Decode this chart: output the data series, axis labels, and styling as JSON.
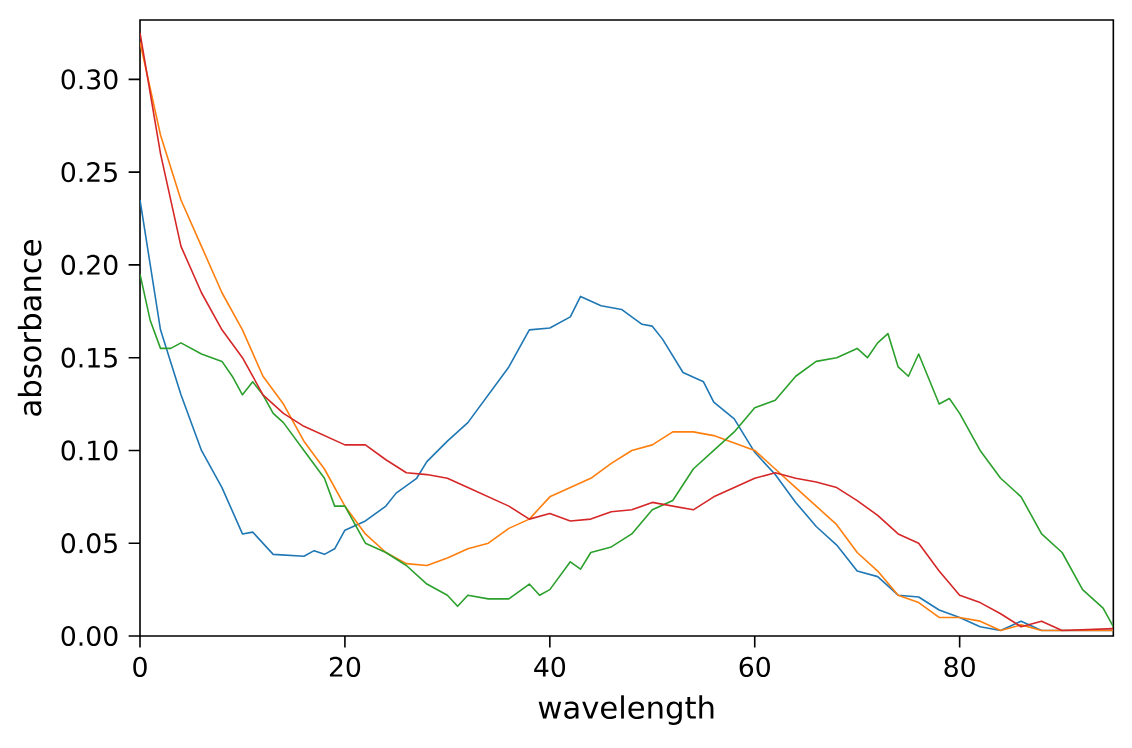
{
  "chart_data": {
    "type": "line",
    "xlabel": "wavelength",
    "ylabel": "absorbance",
    "xlim": [
      0,
      95
    ],
    "ylim": [
      0,
      0.332
    ],
    "xticks": [
      0,
      20,
      40,
      60,
      80
    ],
    "yticks": [
      {
        "value": 0,
        "label": "0.00"
      },
      {
        "value": 0.05,
        "label": "0.05"
      },
      {
        "value": 0.1,
        "label": "0.10"
      },
      {
        "value": 0.15,
        "label": "0.15"
      },
      {
        "value": 0.2,
        "label": "0.20"
      },
      {
        "value": 0.25,
        "label": "0.25"
      },
      {
        "value": 0.3,
        "label": "0.30"
      }
    ],
    "series": [
      {
        "color": "#1f77b4",
        "x": [
          0,
          2,
          4,
          6,
          8,
          10,
          11,
          13,
          16,
          17,
          18,
          19,
          20,
          22,
          24,
          25,
          27,
          28,
          30,
          32,
          34,
          36,
          37,
          38,
          40,
          42,
          43,
          45,
          47,
          49,
          50,
          51,
          53,
          55,
          56,
          58,
          60,
          62,
          64,
          66,
          68,
          70,
          72,
          74,
          76,
          78,
          80,
          82,
          84,
          86,
          88,
          90,
          95
        ],
        "values": [
          0.235,
          0.165,
          0.13,
          0.1,
          0.08,
          0.055,
          0.056,
          0.044,
          0.043,
          0.046,
          0.044,
          0.047,
          0.057,
          0.062,
          0.07,
          0.077,
          0.085,
          0.094,
          0.105,
          0.115,
          0.13,
          0.145,
          0.155,
          0.165,
          0.166,
          0.172,
          0.183,
          0.178,
          0.176,
          0.168,
          0.167,
          0.16,
          0.142,
          0.137,
          0.126,
          0.117,
          0.099,
          0.087,
          0.072,
          0.059,
          0.049,
          0.035,
          0.032,
          0.022,
          0.021,
          0.014,
          0.01,
          0.005,
          0.003,
          0.008,
          0.003,
          null,
          0.003
        ]
      },
      {
        "color": "#ff7f0e",
        "x": [
          0,
          2,
          4,
          6,
          8,
          10,
          12,
          14,
          16,
          18,
          20,
          22,
          24,
          26,
          28,
          30,
          32,
          34,
          36,
          38,
          40,
          42,
          44,
          46,
          48,
          50,
          52,
          54,
          56,
          58,
          60,
          62,
          64,
          66,
          68,
          70,
          72,
          74,
          76,
          78,
          80,
          82,
          84,
          86,
          88,
          90,
          95
        ],
        "values": [
          0.32,
          0.27,
          0.235,
          0.21,
          0.185,
          0.165,
          0.14,
          0.125,
          0.105,
          0.09,
          0.07,
          0.055,
          0.045,
          0.039,
          0.038,
          0.042,
          0.047,
          0.05,
          0.058,
          0.063,
          0.075,
          0.08,
          0.085,
          0.093,
          0.1,
          0.103,
          0.11,
          0.11,
          0.108,
          0.104,
          0.1,
          0.09,
          0.08,
          0.07,
          0.06,
          0.045,
          0.035,
          0.022,
          0.018,
          0.01,
          0.01,
          0.008,
          0.003,
          0.006,
          0.003,
          0.003,
          0.003
        ]
      },
      {
        "color": "#2ca02c",
        "x": [
          0,
          1,
          2,
          3,
          4,
          6,
          8,
          9,
          10,
          11,
          12,
          13,
          14,
          16,
          18,
          19,
          20,
          22,
          24,
          26,
          28,
          30,
          31,
          32,
          34,
          36,
          38,
          39,
          40,
          42,
          43,
          44,
          46,
          48,
          50,
          52,
          54,
          56,
          58,
          60,
          62,
          64,
          66,
          68,
          70,
          71,
          72,
          73,
          74,
          75,
          76,
          78,
          79,
          80,
          82,
          84,
          86,
          88,
          90,
          92,
          94,
          95
        ],
        "values": [
          0.195,
          0.17,
          0.155,
          0.155,
          0.158,
          0.152,
          0.148,
          0.14,
          0.13,
          0.137,
          0.13,
          0.12,
          0.115,
          0.1,
          0.085,
          0.07,
          0.07,
          0.05,
          0.045,
          0.038,
          0.028,
          0.022,
          0.016,
          0.022,
          0.02,
          0.02,
          0.028,
          0.022,
          0.025,
          0.04,
          0.036,
          0.045,
          0.048,
          0.055,
          0.068,
          0.073,
          0.09,
          0.1,
          0.11,
          0.123,
          0.127,
          0.14,
          0.148,
          0.15,
          0.155,
          0.15,
          0.158,
          0.163,
          0.145,
          0.14,
          0.152,
          0.125,
          0.128,
          0.12,
          0.1,
          0.085,
          0.075,
          0.055,
          0.045,
          0.025,
          0.015,
          0.005
        ]
      },
      {
        "color": "#d62728",
        "x": [
          0,
          2,
          4,
          6,
          8,
          10,
          11,
          12,
          14,
          16,
          18,
          20,
          22,
          24,
          26,
          28,
          30,
          32,
          34,
          36,
          38,
          40,
          42,
          44,
          46,
          48,
          50,
          52,
          54,
          56,
          58,
          60,
          62,
          64,
          66,
          68,
          70,
          72,
          74,
          76,
          78,
          80,
          82,
          84,
          86,
          88,
          90,
          95
        ],
        "values": [
          0.325,
          0.26,
          0.21,
          0.185,
          0.165,
          0.15,
          0.14,
          0.13,
          0.12,
          0.113,
          0.108,
          0.103,
          0.103,
          0.095,
          0.088,
          0.087,
          0.085,
          0.08,
          0.075,
          0.07,
          0.063,
          0.066,
          0.062,
          0.063,
          0.067,
          0.068,
          0.072,
          0.07,
          0.068,
          0.075,
          0.08,
          0.085,
          0.088,
          0.085,
          0.083,
          0.08,
          0.073,
          0.065,
          0.055,
          0.05,
          0.035,
          0.022,
          0.018,
          0.012,
          0.005,
          0.008,
          0.003,
          0.004
        ]
      }
    ]
  }
}
